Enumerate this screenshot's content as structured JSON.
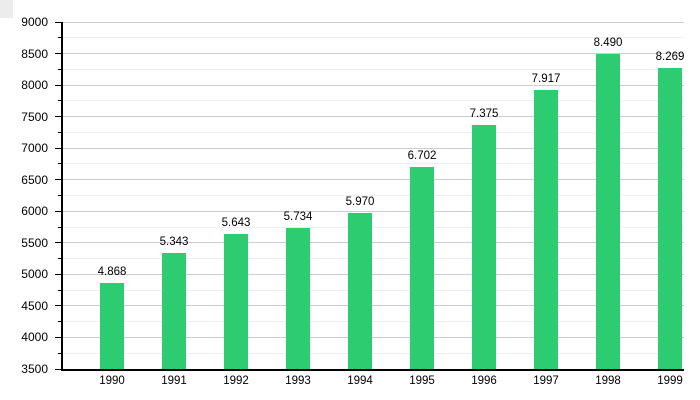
{
  "chart_data": {
    "type": "bar",
    "title": "",
    "xlabel": "",
    "ylabel": "",
    "categories": [
      "1990",
      "1991",
      "1992",
      "1993",
      "1994",
      "1995",
      "1996",
      "1997",
      "1998",
      "1999"
    ],
    "values": [
      4868,
      5343,
      5643,
      5734,
      5970,
      6702,
      7375,
      7917,
      8490,
      8269
    ],
    "value_labels": [
      "4.868",
      "5.343",
      "5.643",
      "5.734",
      "5.970",
      "6.702",
      "7.375",
      "7.917",
      "8.490",
      "8.269"
    ],
    "ylim": [
      3500,
      9000
    ],
    "ytick_labels": [
      "3500",
      "4000",
      "4500",
      "5000",
      "5500",
      "6000",
      "6500",
      "7000",
      "7500",
      "8000",
      "8500",
      "9000"
    ],
    "ytick_major_interval": 500,
    "ytick_minor_interval": 250,
    "grid": "horizontal major and minor gridlines",
    "legend": "none",
    "bar_color": "#2ECC71",
    "major_grid_color": "#CCCCDB",
    "minor_grid_color": "#EEEEF4",
    "axis_color": "#000000",
    "text_color": "#000000",
    "background_color": "#FFFFFF"
  }
}
